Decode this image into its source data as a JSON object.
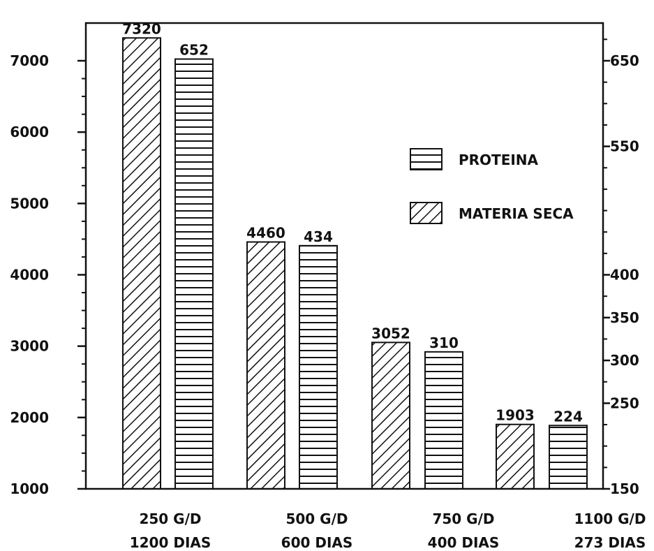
{
  "chart_data": {
    "type": "bar",
    "title": "",
    "categories": [
      {
        "line1": "250 G/D",
        "line2": "1200 DIAS"
      },
      {
        "line1": "500 G/D",
        "line2": "600 DIAS"
      },
      {
        "line1": "750 G/D",
        "line2": "400 DIAS"
      },
      {
        "line1": "1100 G/D",
        "line2": "273 DIAS"
      }
    ],
    "series": [
      {
        "name": "MATERIA SECA",
        "axis": "left",
        "pattern": "diagonal-hatch",
        "values": [
          7320,
          4460,
          3052,
          1903
        ],
        "labels": [
          "7320",
          "4460",
          "3052",
          "1903"
        ]
      },
      {
        "name": "PROTEINA",
        "axis": "right",
        "pattern": "horizontal-lines",
        "values": [
          652,
          434,
          310,
          224
        ],
        "labels": [
          "652",
          "434",
          "310",
          "224"
        ]
      }
    ],
    "left_axis": {
      "ylim": [
        1000,
        7200
      ],
      "ticks": [
        1000,
        2000,
        3000,
        4000,
        5000,
        6000,
        7000
      ],
      "tick_labels": [
        "1000",
        "2000",
        "3000",
        "4000",
        "5000",
        "6000",
        "7000"
      ]
    },
    "right_axis": {
      "ylim": [
        150,
        700
      ],
      "ticks": [
        150,
        250,
        300,
        350,
        400,
        550,
        650
      ],
      "tick_labels": [
        "150",
        "250",
        "300",
        "350",
        "400",
        "550",
        "650"
      ]
    },
    "legend": {
      "placement": "right",
      "items": [
        {
          "label": "PROTEINA",
          "pattern": "horizontal-lines"
        },
        {
          "label": "MATERIA SECA",
          "pattern": "diagonal-hatch"
        }
      ]
    },
    "grid": false,
    "colors": {
      "ink": "#111111",
      "background": "#ffffff"
    }
  }
}
